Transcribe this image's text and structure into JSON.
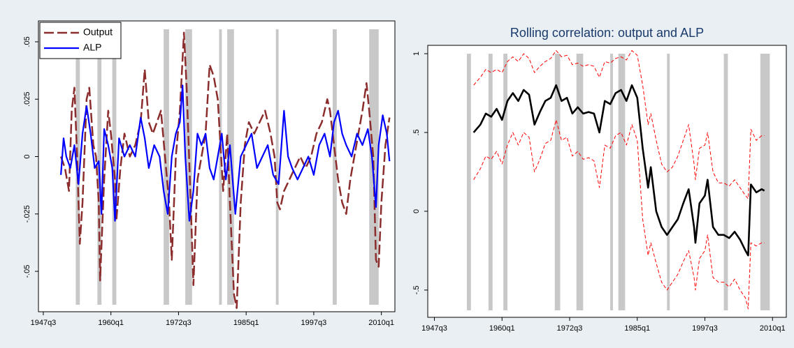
{
  "chart_data": [
    {
      "type": "line",
      "legend": "top-left",
      "xlim": [
        1946.6,
        2012.5
      ],
      "ylim": [
        -0.0676,
        0.0591
      ],
      "xticks": [
        {
          "value": 1947.5,
          "label": "1947q3"
        },
        {
          "value": 1960,
          "label": "1960q1"
        },
        {
          "value": 1972.5,
          "label": "1972q3"
        },
        {
          "value": 1985,
          "label": "1985q1"
        },
        {
          "value": 1997.5,
          "label": "1997q3"
        },
        {
          "value": 2010,
          "label": "2010q1"
        }
      ],
      "yticks": [
        {
          "value": -0.05,
          "label": "-.05"
        },
        {
          "value": -0.025,
          "label": "-.025"
        },
        0,
        {
          "value": 0.025,
          "label": ".025"
        },
        {
          "value": 0.05,
          "label": ".05"
        }
      ],
      "shaded": [
        [
          1953.5,
          1954.25
        ],
        [
          1957.5,
          1958.25
        ],
        [
          1960.25,
          1961.0
        ],
        [
          1969.75,
          1970.75
        ],
        [
          1973.75,
          1975.0
        ],
        [
          1980.0,
          1980.5
        ],
        [
          1981.5,
          1982.75
        ],
        [
          1990.5,
          1991.0
        ],
        [
          2001.0,
          2001.75
        ],
        [
          2007.75,
          2009.5
        ]
      ],
      "shade_color": "#c8c8c8",
      "series": [
        {
          "name": "Output",
          "color": "#8c2d2d",
          "style": "dashed",
          "x": [
            1950.75,
            1951.5,
            1952.25,
            1952.75,
            1953.25,
            1953.75,
            1954.25,
            1954.75,
            1955.5,
            1956.0,
            1956.75,
            1957.25,
            1957.75,
            1958.0,
            1958.75,
            1959.5,
            1960.0,
            1960.75,
            1961.0,
            1961.75,
            1962.5,
            1963.5,
            1964.5,
            1965.5,
            1966.25,
            1967.0,
            1967.75,
            1968.5,
            1969.25,
            1970.0,
            1970.75,
            1971.25,
            1972.0,
            1972.75,
            1973.5,
            1974.0,
            1974.75,
            1975.25,
            1976.0,
            1976.75,
            1977.5,
            1978.25,
            1979.0,
            1979.75,
            1980.25,
            1980.75,
            1981.5,
            1982.0,
            1982.75,
            1983.25,
            1984.0,
            1984.75,
            1985.5,
            1986.5,
            1987.5,
            1988.5,
            1989.5,
            1990.25,
            1990.75,
            1991.25,
            1992.0,
            1993.0,
            1994.0,
            1995.0,
            1996.0,
            1997.0,
            1998.0,
            1999.0,
            2000.0,
            2000.5,
            2001.25,
            2002.0,
            2002.75,
            2003.5,
            2004.25,
            2005.0,
            2005.75,
            2006.5,
            2007.25,
            2007.75,
            2008.5,
            2009.0,
            2009.5,
            2010.0,
            2010.75,
            2011.5
          ],
          "values": [
            0.0,
            -0.005,
            -0.015,
            0.02,
            0.03,
            0.0,
            -0.038,
            -0.02,
            0.025,
            0.03,
            0.005,
            0.0,
            -0.02,
            -0.054,
            -0.01,
            0.02,
            0.01,
            -0.01,
            -0.028,
            -0.005,
            0.01,
            0.0,
            0.005,
            0.015,
            0.038,
            0.015,
            0.01,
            0.015,
            0.02,
            0.0,
            -0.02,
            -0.045,
            0.0,
            0.02,
            0.054,
            0.03,
            -0.02,
            -0.056,
            -0.01,
            0.0,
            0.01,
            0.04,
            0.035,
            0.025,
            0.005,
            -0.015,
            0.01,
            -0.02,
            -0.06,
            -0.066,
            -0.02,
            0.005,
            0.015,
            0.01,
            0.015,
            0.02,
            0.01,
            0.0,
            -0.02,
            -0.023,
            -0.015,
            -0.01,
            -0.005,
            0.0,
            -0.005,
            0.0,
            0.01,
            0.015,
            0.025,
            0.02,
            0.005,
            -0.01,
            -0.02,
            -0.025,
            -0.01,
            0.0,
            0.01,
            0.02,
            0.032,
            0.02,
            0.0,
            -0.045,
            -0.048,
            -0.02,
            0.005,
            0.017
          ]
        },
        {
          "name": "ALP",
          "color": "#0000ff",
          "style": "solid",
          "x": [
            1950.75,
            1951.25,
            1951.75,
            1952.5,
            1953.25,
            1954.0,
            1954.75,
            1955.5,
            1956.25,
            1957.0,
            1957.75,
            1958.25,
            1958.75,
            1959.5,
            1960.25,
            1960.75,
            1961.5,
            1962.5,
            1963.5,
            1964.5,
            1965.5,
            1966.25,
            1967.0,
            1968.0,
            1969.0,
            1969.75,
            1970.5,
            1971.25,
            1972.0,
            1972.75,
            1973.25,
            1973.75,
            1974.5,
            1975.25,
            1976.0,
            1976.75,
            1977.5,
            1978.25,
            1979.0,
            1979.75,
            1980.5,
            1981.25,
            1982.0,
            1983.0,
            1984.0,
            1985.0,
            1986.0,
            1987.0,
            1988.0,
            1989.0,
            1990.0,
            1991.0,
            1992.0,
            1992.75,
            1993.5,
            1994.5,
            1995.5,
            1996.5,
            1997.5,
            1998.5,
            1999.5,
            2000.5,
            2001.25,
            2002.0,
            2002.75,
            2003.5,
            2004.5,
            2005.5,
            2006.5,
            2007.5,
            2008.25,
            2009.0,
            2009.5,
            2010.25,
            2011.0,
            2011.5
          ],
          "values": [
            -0.008,
            0.008,
            0.0,
            -0.005,
            0.005,
            -0.012,
            0.01,
            0.022,
            0.01,
            -0.005,
            -0.002,
            -0.025,
            0.012,
            0.005,
            -0.005,
            -0.028,
            0.008,
            0.0,
            0.005,
            0.0,
            0.017,
            0.008,
            -0.005,
            0.005,
            0.0,
            -0.015,
            -0.025,
            0.0,
            0.01,
            0.015,
            0.031,
            0.0,
            -0.028,
            -0.015,
            0.01,
            0.005,
            0.01,
            -0.005,
            -0.01,
            0.0,
            0.01,
            -0.01,
            0.005,
            -0.025,
            0.0,
            0.005,
            0.01,
            -0.005,
            0.0,
            0.005,
            -0.008,
            -0.012,
            0.02,
            0.0,
            -0.005,
            -0.01,
            -0.005,
            0.0,
            -0.008,
            0.005,
            0.01,
            0.0,
            0.015,
            0.02,
            0.01,
            0.005,
            0.0,
            0.01,
            0.005,
            0.012,
            0.0,
            -0.022,
            0.005,
            0.018,
            0.01,
            -0.002
          ]
        }
      ]
    },
    {
      "type": "line",
      "title": "Rolling correlation: output and ALP",
      "xlim": [
        1946.27,
        2012.55
      ],
      "ylim": [
        -0.673,
        1.053
      ],
      "xticks": [
        {
          "value": 1947.5,
          "label": "1947q3"
        },
        {
          "value": 1960,
          "label": "1960q1"
        },
        {
          "value": 1972.5,
          "label": "1972q3"
        },
        {
          "value": 1985,
          "label": "1985q1"
        },
        {
          "value": 1997.5,
          "label": "1997q3"
        },
        {
          "value": 2010,
          "label": "2010q1"
        }
      ],
      "yticks": [
        {
          "value": -0.5,
          "label": "-.5"
        },
        0,
        {
          "value": 0.5,
          "label": ".5"
        },
        1
      ],
      "shaded": [
        [
          1953.5,
          1954.25
        ],
        [
          1957.5,
          1958.25
        ],
        [
          1960.25,
          1961.0
        ],
        [
          1969.75,
          1970.75
        ],
        [
          1973.75,
          1975.0
        ],
        [
          1980.0,
          1980.5
        ],
        [
          1981.5,
          1982.75
        ],
        [
          1990.5,
          1991.0
        ],
        [
          2001.0,
          2001.75
        ],
        [
          2007.75,
          2009.5
        ]
      ],
      "shade_color": "#c8c8c8",
      "x": [
        1954.75,
        1956,
        1957,
        1958,
        1959,
        1960,
        1961,
        1962,
        1963,
        1964,
        1965,
        1966,
        1967,
        1968,
        1969,
        1970,
        1971,
        1972,
        1973,
        1974,
        1975,
        1976,
        1977,
        1978,
        1979,
        1980,
        1981,
        1982,
        1983,
        1984,
        1985,
        1986,
        1987,
        1987.5,
        1988.5,
        1989.5,
        1990.5,
        1991.5,
        1992.5,
        1993.5,
        1994.5,
        1995.5,
        1995.75,
        1996.5,
        1997.5,
        1998,
        1999,
        2000,
        2001,
        2002,
        2003,
        2004,
        2005,
        2005.5,
        2006,
        2007,
        2008,
        2008.5
      ],
      "series": [
        {
          "color": "#ff0000",
          "style": "thin-dashed",
          "values": [
            0.8,
            0.85,
            0.9,
            0.88,
            0.9,
            0.88,
            0.95,
            0.98,
            0.95,
            1.0,
            0.97,
            0.88,
            0.92,
            0.95,
            0.97,
            1.02,
            0.98,
            0.99,
            0.93,
            0.94,
            0.92,
            0.93,
            0.92,
            0.85,
            0.95,
            0.94,
            0.97,
            0.98,
            0.96,
            1.02,
            0.99,
            0.8,
            0.55,
            0.62,
            0.45,
            0.3,
            0.25,
            0.28,
            0.35,
            0.45,
            0.55,
            0.3,
            0.2,
            0.4,
            0.42,
            0.5,
            0.25,
            0.18,
            0.18,
            0.16,
            0.2,
            0.15,
            0.1,
            0.08,
            0.52,
            0.45,
            0.48,
            0.48
          ]
        },
        {
          "color": "#ff0000",
          "style": "thin-dashed",
          "values": [
            0.2,
            0.27,
            0.35,
            0.33,
            0.38,
            0.3,
            0.42,
            0.5,
            0.42,
            0.5,
            0.47,
            0.25,
            0.33,
            0.43,
            0.45,
            0.58,
            0.45,
            0.47,
            0.35,
            0.38,
            0.33,
            0.34,
            0.32,
            0.15,
            0.42,
            0.4,
            0.48,
            0.5,
            0.42,
            0.55,
            0.45,
            -0.05,
            -0.28,
            -0.2,
            -0.33,
            -0.45,
            -0.5,
            -0.45,
            -0.4,
            -0.32,
            -0.25,
            -0.42,
            -0.5,
            -0.3,
            -0.25,
            -0.15,
            -0.42,
            -0.45,
            -0.45,
            -0.48,
            -0.43,
            -0.5,
            -0.55,
            -0.62,
            -0.2,
            -0.22,
            -0.2,
            -0.2
          ]
        },
        {
          "color": "#000000",
          "style": "thick",
          "values": [
            0.5,
            0.55,
            0.62,
            0.6,
            0.65,
            0.58,
            0.7,
            0.75,
            0.7,
            0.77,
            0.74,
            0.55,
            0.63,
            0.7,
            0.72,
            0.8,
            0.7,
            0.72,
            0.62,
            0.66,
            0.62,
            0.63,
            0.62,
            0.5,
            0.7,
            0.68,
            0.75,
            0.77,
            0.7,
            0.8,
            0.72,
            0.4,
            0.15,
            0.28,
            0.0,
            -0.1,
            -0.15,
            -0.1,
            -0.05,
            0.05,
            0.14,
            -0.1,
            -0.2,
            0.05,
            0.1,
            0.2,
            -0.1,
            -0.15,
            -0.15,
            -0.17,
            -0.13,
            -0.18,
            -0.25,
            -0.28,
            0.17,
            0.12,
            0.14,
            0.13
          ]
        }
      ]
    }
  ]
}
